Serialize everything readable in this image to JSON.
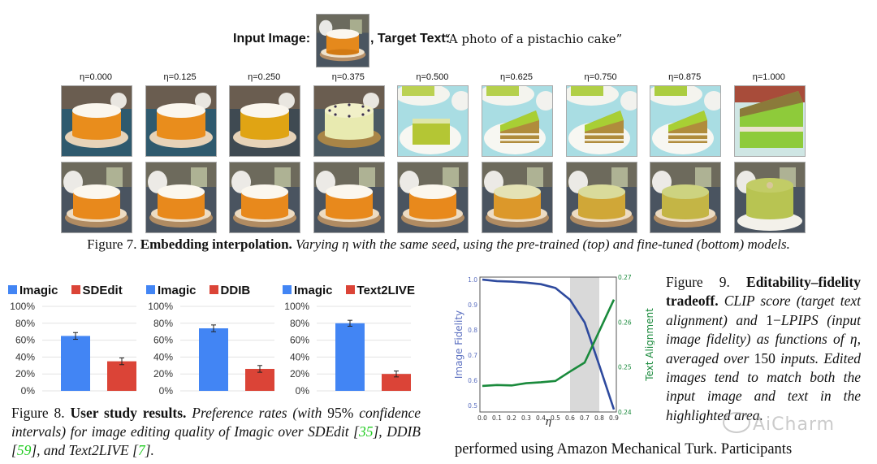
{
  "figure7": {
    "input_image_label": "Input Image:",
    "target_text_label": ", Target Text:",
    "target_text_value": "“A photo of a pistachio cake”",
    "eta_labels": [
      "η=0.000",
      "η=0.125",
      "η=0.250",
      "η=0.375",
      "η=0.500",
      "η=0.625",
      "η=0.750",
      "η=0.875",
      "η=1.000"
    ],
    "top_row_description": "pre-trained model outputs: orange cake transitioning to pistachio cake slice",
    "bottom_row_description": "fine-tuned model outputs: orange cake transitioning to pistachio-green cake",
    "caption": {
      "prefix": "Figure 7. ",
      "title": "Embedding interpolation.",
      "body": " Varying η with the same seed, using the pre-trained (top) and fine-tuned (bottom) models."
    }
  },
  "figure8": {
    "caption": {
      "prefix": "Figure 8.  ",
      "title": "User study results.",
      "body_1": "  Preference rates (with ",
      "num": "95%",
      "body_2": " confidence intervals) for image editing quality of Imagic over SDEdit [",
      "ref1": "35",
      "body_3": "], DDIB [",
      "ref2": "59",
      "body_4": "], and Text2LIVE [",
      "ref3": "7",
      "body_5": "]."
    }
  },
  "figure9": {
    "caption": {
      "prefix": "Figure 9.  ",
      "title": "Editability–fidelity tradeoff.",
      "body_1": " CLIP score (target text alignment) and ",
      "math": "1−",
      "body_2": "LPIPS (input image fidelity) as functions of η, averaged over ",
      "num": "150",
      "body_3": " inputs. Edited images tend to match both the input image and text in the highlighted area."
    }
  },
  "body_text": "performed using Amazon Mechanical Turk.  Participants",
  "watermark": "AiCharm",
  "colors": {
    "imagic_blue": "#4285f4",
    "baseline_red": "#db4437",
    "fidelity_line": "#2e4a9e",
    "alignment_line": "#1a8a3c",
    "highlight_band": "#d9d9d9",
    "ref_green": "#22cc22"
  },
  "chart_data": [
    {
      "type": "bar",
      "title": "",
      "categories": [
        "Imagic",
        "SDEdit"
      ],
      "values": [
        65,
        35
      ],
      "error": [
        4,
        4
      ],
      "colors": [
        "#4285f4",
        "#db4437"
      ],
      "legend": [
        "Imagic",
        "SDEdit"
      ],
      "legend_position": "top",
      "yticks": [
        "0%",
        "20%",
        "40%",
        "60%",
        "80%",
        "100%"
      ],
      "ylim": [
        0,
        100
      ],
      "grid": true
    },
    {
      "type": "bar",
      "title": "",
      "categories": [
        "Imagic",
        "DDIB"
      ],
      "values": [
        74,
        26
      ],
      "error": [
        4,
        4
      ],
      "colors": [
        "#4285f4",
        "#db4437"
      ],
      "legend": [
        "Imagic",
        "DDIB"
      ],
      "legend_position": "top",
      "yticks": [
        "0%",
        "20%",
        "40%",
        "60%",
        "80%",
        "100%"
      ],
      "ylim": [
        0,
        100
      ],
      "grid": true
    },
    {
      "type": "bar",
      "title": "",
      "categories": [
        "Imagic",
        "Text2LIVE"
      ],
      "values": [
        80,
        20
      ],
      "error": [
        3.5,
        3.5
      ],
      "colors": [
        "#4285f4",
        "#db4437"
      ],
      "legend": [
        "Imagic",
        "Text2LIVE"
      ],
      "legend_position": "top",
      "yticks": [
        "0%",
        "20%",
        "40%",
        "60%",
        "80%",
        "100%"
      ],
      "ylim": [
        0,
        100
      ],
      "grid": true
    },
    {
      "type": "line",
      "title": "",
      "xlabel": "η",
      "ylabel": "Image Fidelity",
      "ylabel2": "Text Alignment",
      "x": [
        0.0,
        0.1,
        0.2,
        0.3,
        0.4,
        0.5,
        0.6,
        0.7,
        0.8,
        0.9
      ],
      "xticks": [
        "0.0",
        "0.1",
        "0.2",
        "0.3",
        "0.4",
        "0.5",
        "0.6",
        "0.7",
        "0.8",
        "0.9"
      ],
      "xlim": [
        0.0,
        0.9
      ],
      "ylim": [
        0.475,
        1.01
      ],
      "yticks": [
        "0.5",
        "0.6",
        "0.7",
        "0.8",
        "0.9",
        "1.0"
      ],
      "y2lim": [
        0.24,
        0.27
      ],
      "y2ticks": [
        "0.24",
        "0.25",
        "0.26",
        "0.27"
      ],
      "highlight_x_range": [
        0.6,
        0.8
      ],
      "series": [
        {
          "name": "Image Fidelity",
          "axis": "left",
          "color": "#2e4a9e",
          "values": [
            1.0,
            0.994,
            0.992,
            0.988,
            0.982,
            0.967,
            0.92,
            0.83,
            0.66,
            0.485
          ]
        },
        {
          "name": "Text Alignment",
          "axis": "right",
          "color": "#1a8a3c",
          "values": [
            0.2458,
            0.246,
            0.2459,
            0.2464,
            0.2466,
            0.2469,
            0.249,
            0.251,
            0.258,
            0.265
          ]
        }
      ]
    }
  ]
}
